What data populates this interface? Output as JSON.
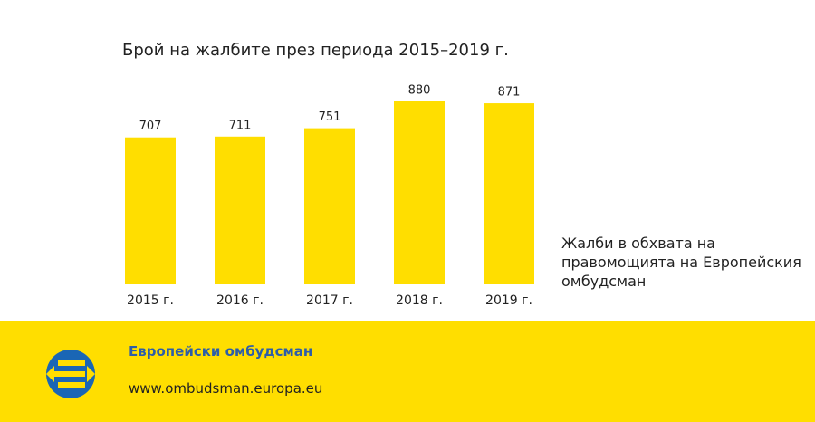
{
  "chart_data": {
    "type": "bar",
    "title": "Брой на жалбите през периода 2015–2019 г.",
    "categories": [
      "2015 г.",
      "2016 г.",
      "2017 г.",
      "2018 г.",
      "2019 г."
    ],
    "series": [
      {
        "name": "Жалби в обхвата на правомощията на Европейския омбудсман",
        "color": "#ffde00",
        "values": [
          707,
          711,
          751,
          880,
          871
        ]
      }
    ]
  },
  "footer": {
    "title": "Европейски омбудсман",
    "url": "www.ombudsman.europa.eu"
  }
}
